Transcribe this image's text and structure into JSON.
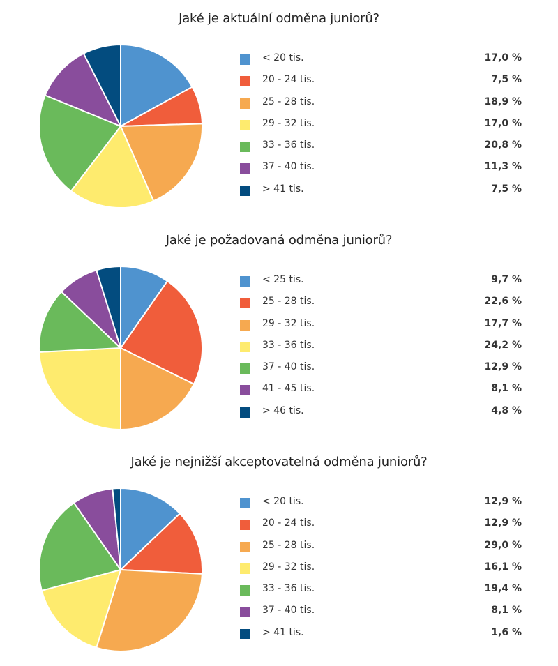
{
  "colors": [
    "#4f93cf",
    "#f05d3b",
    "#f6a950",
    "#feeb6e",
    "#6aba5b",
    "#894d9c",
    "#034c7f"
  ],
  "chart_data": [
    {
      "type": "pie",
      "title": "Jaké je aktuální odměna juniorů?",
      "categories": [
        "< 20 tis.",
        "20 - 24 tis.",
        "25 - 28 tis.",
        "29 - 32 tis.",
        "33 - 36 tis.",
        "37 - 40 tis.",
        "> 41 tis."
      ],
      "values": [
        17.0,
        7.5,
        18.9,
        17.0,
        20.8,
        11.3,
        7.5
      ],
      "value_labels": [
        "17,0 %",
        "7,5 %",
        "18,9 %",
        "17,0 %",
        "20,8 %",
        "11,3 %",
        "7,5 %"
      ],
      "legend_position": "right"
    },
    {
      "type": "pie",
      "title": "Jaké je požadovaná odměna juniorů?",
      "categories": [
        "< 25 tis.",
        "25 - 28 tis.",
        "29 - 32 tis.",
        "33 - 36 tis.",
        "37 - 40 tis.",
        "41 - 45 tis.",
        "> 46 tis."
      ],
      "values": [
        9.7,
        22.6,
        17.7,
        24.2,
        12.9,
        8.1,
        4.8
      ],
      "value_labels": [
        "9,7 %",
        "22,6 %",
        "17,7 %",
        "24,2 %",
        "12,9 %",
        "8,1 %",
        "4,8 %"
      ],
      "legend_position": "right"
    },
    {
      "type": "pie",
      "title": "Jaké je nejnižší akceptovatelná odměna juniorů?",
      "categories": [
        "< 20 tis.",
        "20 - 24 tis.",
        "25 - 28 tis.",
        "29 - 32 tis.",
        "33 - 36 tis.",
        "37 - 40 tis.",
        "> 41 tis."
      ],
      "values": [
        12.9,
        12.9,
        29.0,
        16.1,
        19.4,
        8.1,
        1.6
      ],
      "value_labels": [
        "12,9 %",
        "12,9 %",
        "29,0 %",
        "16,1 %",
        "19,4 %",
        "8,1 %",
        "1,6 %"
      ],
      "legend_position": "right"
    }
  ]
}
